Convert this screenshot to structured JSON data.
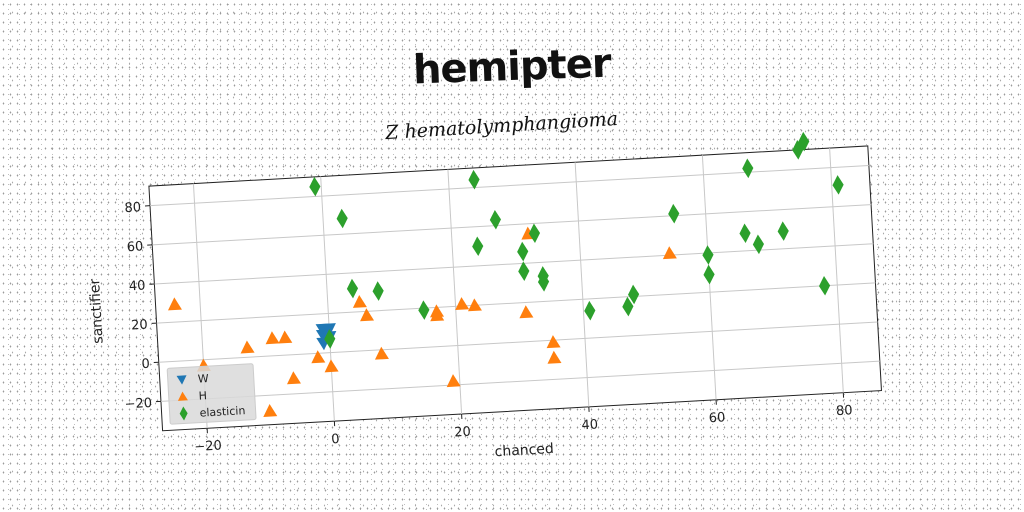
{
  "page": {
    "title": "hemipter"
  },
  "chart_data": {
    "type": "scatter",
    "title": "Z hematolymphangioma",
    "xlabel": "chanced",
    "ylabel": "sanctifier",
    "xlim": [
      -27,
      86
    ],
    "ylim": [
      -35,
      90
    ],
    "xticks": [
      -20,
      0,
      20,
      40,
      60,
      80
    ],
    "yticks": [
      -20,
      0,
      20,
      40,
      60,
      80
    ],
    "grid": true,
    "legend_position": "lower-left",
    "series": [
      {
        "name": "W",
        "marker": "triangle-down",
        "color": "#1f77b4",
        "points": [
          [
            -1,
            12
          ],
          [
            0,
            12
          ],
          [
            -1,
            9
          ],
          [
            0,
            8
          ],
          [
            -1,
            5
          ]
        ]
      },
      {
        "name": "H",
        "marker": "triangle-up",
        "color": "#ff7f0e",
        "points": [
          [
            -24,
            29
          ],
          [
            -20,
            -3
          ],
          [
            -13,
            5
          ],
          [
            -9,
            9
          ],
          [
            -7,
            9
          ],
          [
            -6,
            -12
          ],
          [
            -10,
            -28
          ],
          [
            -2,
            -2
          ],
          [
            0,
            -7
          ],
          [
            5,
            25
          ],
          [
            6,
            18
          ],
          [
            8,
            -2
          ],
          [
            17,
            16
          ],
          [
            17,
            18
          ],
          [
            21,
            21
          ],
          [
            23,
            20
          ],
          [
            19,
            -18
          ],
          [
            31,
            15
          ],
          [
            32,
            55
          ],
          [
            35,
            -1
          ],
          [
            35,
            -9
          ],
          [
            54,
            41
          ]
        ]
      },
      {
        "name": "elasticin",
        "marker": "diamond",
        "color": "#2ca02c",
        "points": [
          [
            -1,
            85
          ],
          [
            3,
            68
          ],
          [
            4,
            32
          ],
          [
            8,
            30
          ],
          [
            0,
            7
          ],
          [
            15,
            19
          ],
          [
            24,
            84
          ],
          [
            24,
            50
          ],
          [
            27,
            63
          ],
          [
            31,
            36
          ],
          [
            31,
            46
          ],
          [
            33,
            55
          ],
          [
            34,
            30
          ],
          [
            34,
            33
          ],
          [
            41,
            14
          ],
          [
            47,
            15
          ],
          [
            48,
            21
          ],
          [
            55,
            61
          ],
          [
            60,
            39
          ],
          [
            60,
            29
          ],
          [
            66,
            49
          ],
          [
            67,
            82
          ],
          [
            68,
            43
          ],
          [
            72,
            49
          ],
          [
            75,
            90
          ],
          [
            76,
            94
          ],
          [
            78,
            20
          ],
          [
            81,
            71
          ]
        ]
      }
    ]
  }
}
